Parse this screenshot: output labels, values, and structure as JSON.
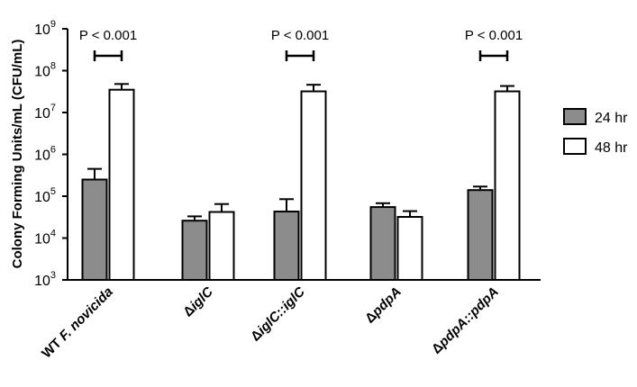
{
  "chart_data": {
    "type": "bar",
    "ylabel": "Colony Forming Units/mL  (CFU/mL)",
    "xlabel": "",
    "yscale": "log",
    "ylim": [
      1000,
      1000000000
    ],
    "yticks": [
      {
        "value": 1000,
        "base": "10",
        "exp": "3"
      },
      {
        "value": 10000,
        "base": "10",
        "exp": "4"
      },
      {
        "value": 100000,
        "base": "10",
        "exp": "5"
      },
      {
        "value": 1000000,
        "base": "10",
        "exp": "6"
      },
      {
        "value": 10000000,
        "base": "10",
        "exp": "7"
      },
      {
        "value": 100000000,
        "base": "10",
        "exp": "8"
      },
      {
        "value": 1000000000,
        "base": "10",
        "exp": "9"
      }
    ],
    "categories": [
      {
        "label": "WT ",
        "italic": "F. novicida"
      },
      {
        "label": "Δ",
        "italic": "iglC"
      },
      {
        "label": "Δ",
        "italic": "iglC::iglC"
      },
      {
        "label": "Δ",
        "italic": "pdpA"
      },
      {
        "label": "Δ",
        "italic": "pdpA::pdpA"
      }
    ],
    "series": [
      {
        "name": "24 hr",
        "color": "#8c8c8c",
        "values": [
          250000,
          26000,
          43000,
          55000,
          140000
        ],
        "error_upper": [
          450000,
          33000,
          85000,
          68000,
          170000
        ]
      },
      {
        "name": "48 hr",
        "color": "#ffffff",
        "values": [
          35000000,
          42000,
          32000000,
          32000,
          32000000
        ],
        "error_upper": [
          48000000,
          65000,
          46000000,
          44000,
          43000000
        ]
      }
    ],
    "annotations": [
      {
        "category": 0,
        "text": "P < 0.001"
      },
      {
        "category": 2,
        "text": "P < 0.001"
      },
      {
        "category": 4,
        "text": "P < 0.001"
      }
    ],
    "legend_position": "right",
    "grid": false
  }
}
